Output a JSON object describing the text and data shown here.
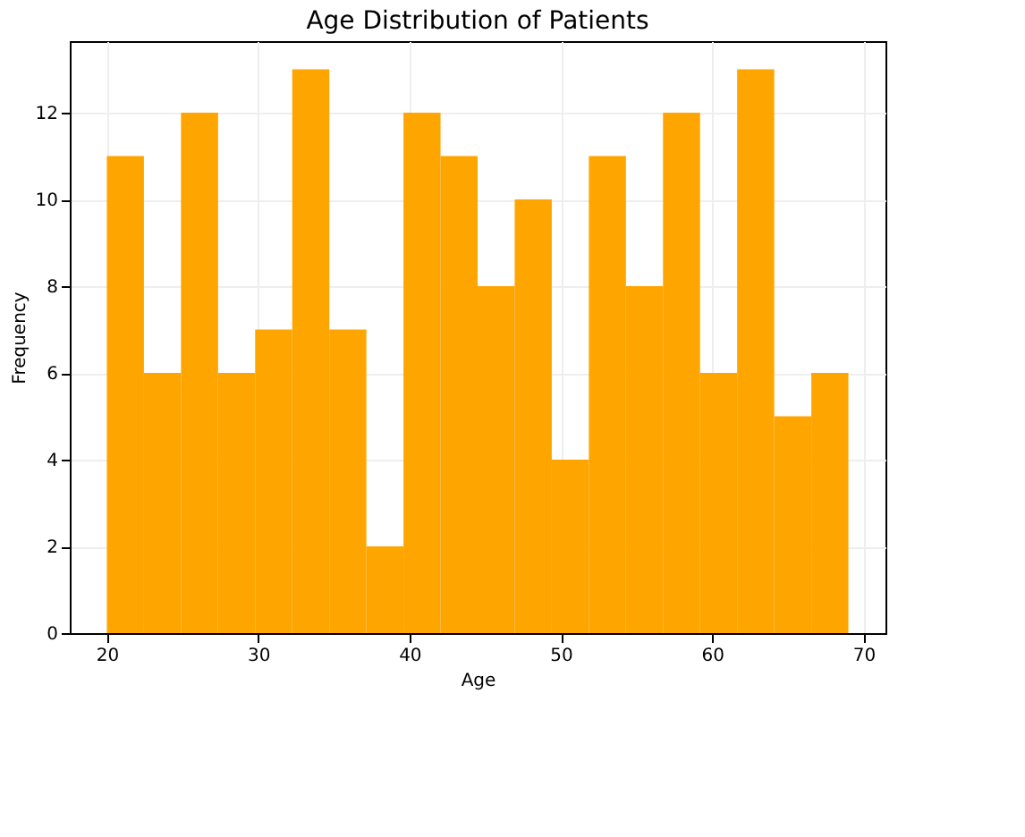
{
  "chart_data": {
    "type": "histogram",
    "title": "Age Distribution of Patients",
    "xlabel": "Age",
    "ylabel": "Frequency",
    "bins": [
      20,
      22.45,
      24.9,
      27.35,
      29.8,
      32.25,
      34.7,
      37.15,
      39.6,
      42.05,
      44.5,
      46.95,
      49.4,
      51.85,
      54.3,
      56.75,
      59.2,
      61.65,
      64.1,
      66.55,
      69
    ],
    "values": [
      11,
      6,
      12,
      6,
      7,
      13,
      7,
      2,
      12,
      11,
      8,
      10,
      4,
      11,
      8,
      12,
      6,
      13,
      5,
      6
    ],
    "color": "#ffa500",
    "xlim": [
      17.55,
      71.45
    ],
    "xticks": [
      20,
      30,
      40,
      50,
      60,
      70
    ],
    "ylim": [
      0,
      13.65
    ],
    "yticks": [
      0,
      2,
      4,
      6,
      8,
      10,
      12
    ],
    "grid": true
  }
}
